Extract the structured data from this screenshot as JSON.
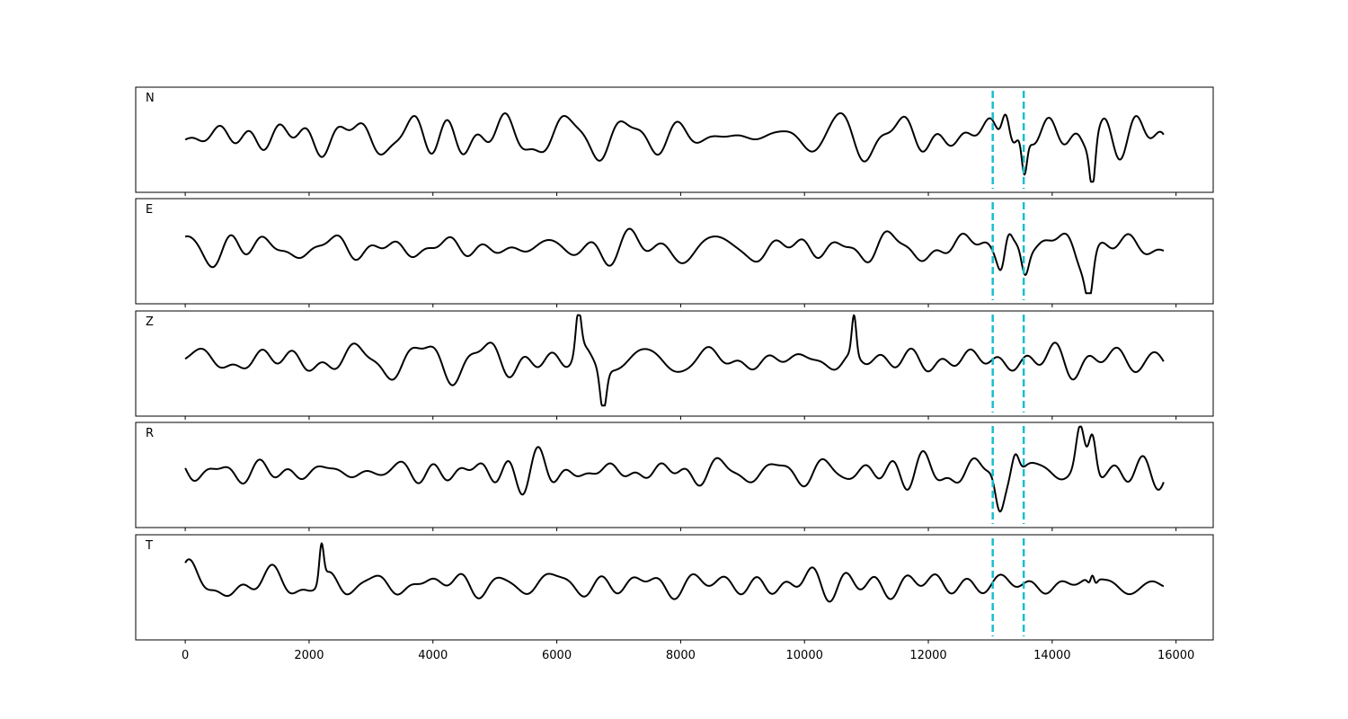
{
  "chart_data": {
    "type": "line",
    "title": "",
    "xlabel": "",
    "ylabel": "",
    "xlim": [
      -800,
      16600
    ],
    "x_ticks": [
      0,
      2000,
      4000,
      6000,
      8000,
      10000,
      12000,
      14000,
      16000
    ],
    "x_tick_labels": [
      "0",
      "2000",
      "4000",
      "6000",
      "8000",
      "10000",
      "12000",
      "14000",
      "16000"
    ],
    "sample_range": [
      0,
      15800
    ],
    "grid": false,
    "legend": "none",
    "trace_color": "#000000",
    "marker_color": "#17BECF",
    "markers_x": [
      13040,
      13540
    ],
    "panels": [
      {
        "label": "N",
        "seed": 11,
        "peaks": [
          [
            13250,
            0.95,
            90
          ],
          [
            13550,
            -0.9,
            60
          ],
          [
            14650,
            -0.95,
            60
          ]
        ]
      },
      {
        "label": "E",
        "seed": 23,
        "peaks": [
          [
            13250,
            0.95,
            110
          ],
          [
            13200,
            -0.75,
            90
          ],
          [
            13560,
            -0.6,
            80
          ],
          [
            14600,
            -0.8,
            80
          ]
        ]
      },
      {
        "label": "Z",
        "seed": 37,
        "peaks": [
          [
            6350,
            0.95,
            60
          ],
          [
            6750,
            -0.95,
            70
          ],
          [
            10800,
            0.9,
            50
          ]
        ]
      },
      {
        "label": "R",
        "seed": 51,
        "peaks": [
          [
            13150,
            -0.95,
            100
          ],
          [
            13400,
            0.7,
            90
          ],
          [
            14450,
            0.95,
            90
          ],
          [
            14650,
            0.85,
            80
          ]
        ]
      },
      {
        "label": "T",
        "seed": 67,
        "peaks": [
          [
            2200,
            0.85,
            50
          ],
          [
            14650,
            0.95,
            50
          ],
          [
            14650,
            -0.9,
            60
          ]
        ]
      }
    ]
  }
}
